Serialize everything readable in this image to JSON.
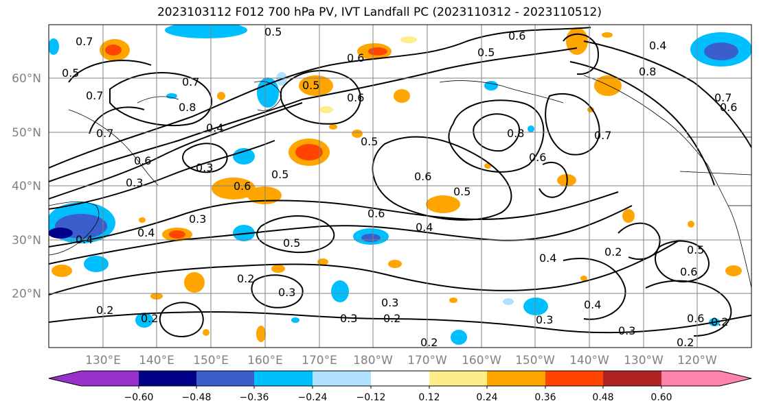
{
  "title": "2023103112 F012 700 hPa PV, IVT Landfall PC (2023110312 - 2023110512)",
  "lat_labels": [
    "60°N",
    "50°N",
    "40°N",
    "30°N",
    "20°N"
  ],
  "lon_labels": [
    "130°E",
    "140°E",
    "150°E",
    "160°E",
    "170°E",
    "180°W",
    "170°W",
    "160°W",
    "150°W",
    "140°W",
    "130°W",
    "120°W"
  ],
  "colorbar": {
    "colors": [
      "#9932CC",
      "#00008B",
      "#3A5FCD",
      "#00BFFF",
      "#B0E2FF",
      "#FFFFFF",
      "#FFEC8B",
      "#FFA500",
      "#FF4500",
      "#B22222",
      "#FF82AB"
    ],
    "tick_labels": [
      "−0.60",
      "−0.48",
      "−0.36",
      "−0.24",
      "−0.12",
      "0.12",
      "0.24",
      "0.36",
      "0.48",
      "0.60"
    ]
  },
  "contour_labels": [
    "0.7",
    "0.5",
    "0.7",
    "0.6",
    "0.5",
    "0.4",
    "0.6",
    "0.5",
    "0.7",
    "0.7",
    "0.8",
    "0.6",
    "0.5",
    "0.8",
    "0.4",
    "0.6",
    "0.3",
    "0.5",
    "0.7",
    "0.8",
    "0.6",
    "0.7",
    "0.6",
    "0.3",
    "0.6",
    "0.5",
    "0.3",
    "0.4",
    "0.5",
    "0.6",
    "0.4",
    "0.5",
    "0.4",
    "0.2",
    "0.3",
    "0.2",
    "0.2",
    "0.3",
    "0.2",
    "0.3",
    "0.2",
    "0.4",
    "0.3",
    "0.2",
    "0.5",
    "0.6",
    "0.6",
    "0.2",
    "0.4",
    "0.3",
    "0.2",
    "0.6"
  ],
  "colors": {
    "pos_light": "#FFEC8B",
    "pos_med": "#FFA500",
    "pos_strong": "#FF4500",
    "pos_dark": "#B22222",
    "neg_light": "#B0E2FF",
    "neg_med": "#00BFFF",
    "neg_strong": "#3A5FCD",
    "neg_dark": "#00008B",
    "contour": "#000000",
    "grid": "#808080"
  }
}
